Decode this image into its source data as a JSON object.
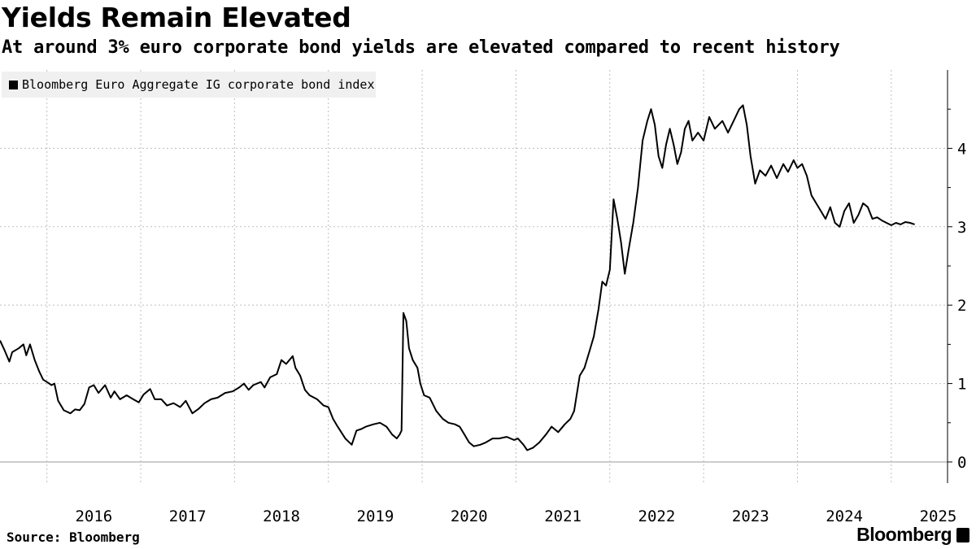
{
  "title": "Yields Remain Elevated",
  "subtitle": "At around 3% euro corporate bond yields are elevated compared to recent history",
  "source": "Source: Bloomberg",
  "brand": "Bloomberg",
  "chart_data": {
    "type": "line",
    "title": "Yields Remain Elevated",
    "subtitle": "At around 3% euro corporate bond yields are elevated compared to recent history",
    "xlabel": "",
    "ylabel": "",
    "xlim": [
      2015.5,
      2025.6
    ],
    "ylim": [
      -0.27,
      5.0
    ],
    "y_axis_side": "right",
    "grid": true,
    "legend_position": "top-left",
    "x_ticks": [
      "2016",
      "2017",
      "2018",
      "2019",
      "2020",
      "2021",
      "2022",
      "2023",
      "2024",
      "2025"
    ],
    "y_ticks": [
      0,
      1,
      2,
      3,
      4
    ],
    "series": [
      {
        "name": "Bloomberg Euro Aggregate IG corporate bond index",
        "color": "#000000",
        "points": [
          [
            2015.5,
            1.55
          ],
          [
            2015.55,
            1.42
          ],
          [
            2015.6,
            1.28
          ],
          [
            2015.63,
            1.4
          ],
          [
            2015.7,
            1.45
          ],
          [
            2015.75,
            1.5
          ],
          [
            2015.78,
            1.36
          ],
          [
            2015.82,
            1.5
          ],
          [
            2015.87,
            1.3
          ],
          [
            2015.92,
            1.15
          ],
          [
            2015.96,
            1.05
          ],
          [
            2016.0,
            1.02
          ],
          [
            2016.05,
            0.98
          ],
          [
            2016.08,
            1.0
          ],
          [
            2016.12,
            0.78
          ],
          [
            2016.18,
            0.66
          ],
          [
            2016.25,
            0.62
          ],
          [
            2016.3,
            0.67
          ],
          [
            2016.35,
            0.66
          ],
          [
            2016.4,
            0.74
          ],
          [
            2016.45,
            0.95
          ],
          [
            2016.5,
            0.98
          ],
          [
            2016.55,
            0.88
          ],
          [
            2016.62,
            0.98
          ],
          [
            2016.68,
            0.82
          ],
          [
            2016.72,
            0.9
          ],
          [
            2016.78,
            0.8
          ],
          [
            2016.85,
            0.85
          ],
          [
            2016.92,
            0.8
          ],
          [
            2016.98,
            0.76
          ],
          [
            2017.03,
            0.86
          ],
          [
            2017.1,
            0.93
          ],
          [
            2017.15,
            0.8
          ],
          [
            2017.22,
            0.8
          ],
          [
            2017.28,
            0.72
          ],
          [
            2017.35,
            0.75
          ],
          [
            2017.42,
            0.7
          ],
          [
            2017.48,
            0.78
          ],
          [
            2017.55,
            0.62
          ],
          [
            2017.62,
            0.68
          ],
          [
            2017.68,
            0.75
          ],
          [
            2017.75,
            0.8
          ],
          [
            2017.82,
            0.82
          ],
          [
            2017.9,
            0.88
          ],
          [
            2017.98,
            0.9
          ],
          [
            2018.05,
            0.95
          ],
          [
            2018.1,
            1.0
          ],
          [
            2018.15,
            0.92
          ],
          [
            2018.2,
            0.98
          ],
          [
            2018.28,
            1.02
          ],
          [
            2018.32,
            0.95
          ],
          [
            2018.38,
            1.08
          ],
          [
            2018.45,
            1.12
          ],
          [
            2018.5,
            1.3
          ],
          [
            2018.55,
            1.25
          ],
          [
            2018.62,
            1.35
          ],
          [
            2018.65,
            1.2
          ],
          [
            2018.7,
            1.1
          ],
          [
            2018.75,
            0.92
          ],
          [
            2018.8,
            0.85
          ],
          [
            2018.88,
            0.8
          ],
          [
            2018.95,
            0.72
          ],
          [
            2019.0,
            0.7
          ],
          [
            2019.05,
            0.55
          ],
          [
            2019.1,
            0.45
          ],
          [
            2019.18,
            0.3
          ],
          [
            2019.25,
            0.22
          ],
          [
            2019.3,
            0.4
          ],
          [
            2019.35,
            0.42
          ],
          [
            2019.4,
            0.45
          ],
          [
            2019.48,
            0.48
          ],
          [
            2019.55,
            0.5
          ],
          [
            2019.62,
            0.45
          ],
          [
            2019.68,
            0.35
          ],
          [
            2019.73,
            0.3
          ],
          [
            2019.76,
            0.35
          ],
          [
            2019.78,
            0.4
          ],
          [
            2019.8,
            1.9
          ],
          [
            2019.83,
            1.8
          ],
          [
            2019.86,
            1.45
          ],
          [
            2019.9,
            1.3
          ],
          [
            2019.95,
            1.2
          ],
          [
            2019.98,
            1.0
          ],
          [
            2020.02,
            0.85
          ],
          [
            2020.08,
            0.82
          ],
          [
            2020.15,
            0.65
          ],
          [
            2020.22,
            0.55
          ],
          [
            2020.28,
            0.5
          ],
          [
            2020.35,
            0.48
          ],
          [
            2020.4,
            0.45
          ],
          [
            2020.45,
            0.35
          ],
          [
            2020.5,
            0.25
          ],
          [
            2020.55,
            0.2
          ],
          [
            2020.62,
            0.22
          ],
          [
            2020.68,
            0.25
          ],
          [
            2020.75,
            0.3
          ],
          [
            2020.82,
            0.3
          ],
          [
            2020.9,
            0.32
          ],
          [
            2020.98,
            0.28
          ],
          [
            2021.02,
            0.3
          ],
          [
            2021.08,
            0.22
          ],
          [
            2021.12,
            0.15
          ],
          [
            2021.18,
            0.18
          ],
          [
            2021.25,
            0.25
          ],
          [
            2021.32,
            0.35
          ],
          [
            2021.38,
            0.45
          ],
          [
            2021.45,
            0.38
          ],
          [
            2021.52,
            0.48
          ],
          [
            2021.58,
            0.55
          ],
          [
            2021.62,
            0.65
          ],
          [
            2021.68,
            1.1
          ],
          [
            2021.73,
            1.2
          ],
          [
            2021.78,
            1.4
          ],
          [
            2021.83,
            1.6
          ],
          [
            2021.88,
            1.95
          ],
          [
            2021.92,
            2.3
          ],
          [
            2021.96,
            2.25
          ],
          [
            2022.0,
            2.45
          ],
          [
            2022.04,
            3.35
          ],
          [
            2022.08,
            3.1
          ],
          [
            2022.12,
            2.8
          ],
          [
            2022.16,
            2.4
          ],
          [
            2022.2,
            2.7
          ],
          [
            2022.25,
            3.05
          ],
          [
            2022.3,
            3.5
          ],
          [
            2022.35,
            4.1
          ],
          [
            2022.4,
            4.35
          ],
          [
            2022.44,
            4.5
          ],
          [
            2022.48,
            4.3
          ],
          [
            2022.52,
            3.9
          ],
          [
            2022.56,
            3.75
          ],
          [
            2022.6,
            4.05
          ],
          [
            2022.64,
            4.25
          ],
          [
            2022.68,
            4.05
          ],
          [
            2022.72,
            3.8
          ],
          [
            2022.76,
            3.95
          ],
          [
            2022.8,
            4.25
          ],
          [
            2022.84,
            4.35
          ],
          [
            2022.88,
            4.1
          ],
          [
            2022.94,
            4.2
          ],
          [
            2023.0,
            4.1
          ],
          [
            2023.06,
            4.4
          ],
          [
            2023.12,
            4.25
          ],
          [
            2023.2,
            4.35
          ],
          [
            2023.26,
            4.2
          ],
          [
            2023.32,
            4.35
          ],
          [
            2023.38,
            4.5
          ],
          [
            2023.42,
            4.55
          ],
          [
            2023.46,
            4.3
          ],
          [
            2023.5,
            3.9
          ],
          [
            2023.55,
            3.55
          ],
          [
            2023.6,
            3.72
          ],
          [
            2023.66,
            3.65
          ],
          [
            2023.72,
            3.78
          ],
          [
            2023.78,
            3.62
          ],
          [
            2023.85,
            3.8
          ],
          [
            2023.9,
            3.7
          ],
          [
            2023.96,
            3.85
          ],
          [
            2024.0,
            3.75
          ],
          [
            2024.05,
            3.8
          ],
          [
            2024.1,
            3.65
          ],
          [
            2024.15,
            3.4
          ],
          [
            2024.2,
            3.3
          ],
          [
            2024.25,
            3.2
          ],
          [
            2024.3,
            3.1
          ],
          [
            2024.35,
            3.25
          ],
          [
            2024.4,
            3.05
          ],
          [
            2024.45,
            3.0
          ],
          [
            2024.5,
            3.2
          ],
          [
            2024.55,
            3.3
          ],
          [
            2024.6,
            3.05
          ],
          [
            2024.65,
            3.15
          ],
          [
            2024.7,
            3.3
          ],
          [
            2024.75,
            3.25
          ],
          [
            2024.8,
            3.1
          ],
          [
            2024.85,
            3.12
          ],
          [
            2024.9,
            3.08
          ],
          [
            2024.95,
            3.05
          ],
          [
            2025.0,
            3.02
          ],
          [
            2025.05,
            3.05
          ],
          [
            2025.1,
            3.03
          ],
          [
            2025.15,
            3.06
          ],
          [
            2025.2,
            3.05
          ],
          [
            2025.25,
            3.03
          ]
        ]
      }
    ]
  }
}
